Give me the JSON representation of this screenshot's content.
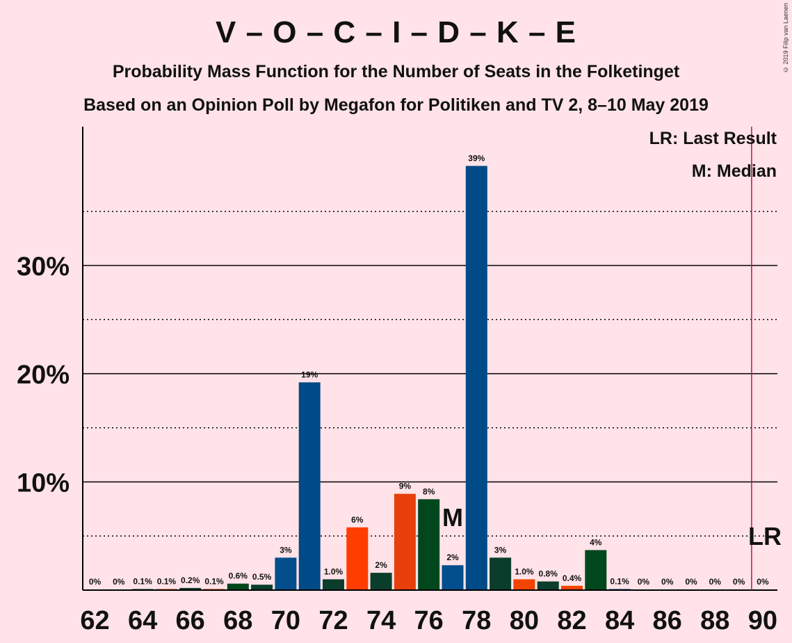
{
  "title": "V – O – C – I – D – K – E",
  "subtitle1": "Probability Mass Function for the Number of Seats in the Folketinget",
  "subtitle2": "Based on an Opinion Poll by Megafon for Politiken and TV 2, 8–10 May 2019",
  "copyright": "© 2019 Filip van Laenen",
  "legend": {
    "last_result": "LR: Last Result",
    "median": "M: Median"
  },
  "markers": {
    "median_label": "M",
    "median_seat": 77,
    "last_result_label": "LR",
    "last_result_seat": 90
  },
  "colors": {
    "background": "#ffe3e8",
    "palette": [
      "#034e8c",
      "#f24400",
      "#00471e",
      "#e8400c",
      "#0a3d2c",
      "#ff3d00",
      "#004a87"
    ],
    "last_result_line": "#c0143c"
  },
  "chart_data": {
    "type": "bar",
    "xlabel": "",
    "ylabel": "",
    "ylim": [
      0,
      42
    ],
    "x_ticks": [
      62,
      64,
      66,
      68,
      70,
      72,
      74,
      76,
      78,
      80,
      82,
      84,
      86,
      88,
      90
    ],
    "y_ticks": [
      10,
      20,
      30
    ],
    "y_tick_labels": [
      "10%",
      "20%",
      "30%"
    ],
    "y_dotted_lines": [
      5,
      15,
      25,
      35
    ],
    "categories": [
      62,
      63,
      64,
      65,
      66,
      67,
      68,
      69,
      70,
      71,
      72,
      73,
      74,
      75,
      76,
      77,
      78,
      79,
      80,
      81,
      82,
      83,
      84,
      85,
      86,
      87,
      88,
      89,
      90
    ],
    "values": [
      0,
      0,
      0.1,
      0.1,
      0.2,
      0.1,
      0.6,
      0.5,
      3,
      19.2,
      1.0,
      5.8,
      1.6,
      8.9,
      8.4,
      2.3,
      39.2,
      3,
      1.0,
      0.8,
      0.4,
      3.7,
      0.1,
      0,
      0,
      0,
      0,
      0,
      0
    ],
    "labels": [
      "0%",
      "0%",
      "0.1%",
      "0.1%",
      "0.2%",
      "0.1%",
      "0.6%",
      "0.5%",
      "3%",
      "19%",
      "1.0%",
      "6%",
      "2%",
      "9%",
      "8%",
      "2%",
      "39%",
      "3%",
      "1.0%",
      "0.8%",
      "0.4%",
      "4%",
      "0.1%",
      "0%",
      "0%",
      "0%",
      "0%",
      "0%",
      "0%"
    ],
    "bar_colors": [
      "#034e8c",
      "#f24400",
      "#00471e",
      "#e8400c",
      "#0a3d2c",
      "#ff3d00",
      "#00471e",
      "#0a3d2c",
      "#034e8c",
      "#004a87",
      "#0a3d2c",
      "#ff3d00",
      "#0a3d2c",
      "#e8400c",
      "#00471e",
      "#034e8c",
      "#004a87",
      "#0a3d2c",
      "#f24400",
      "#0a3d2c",
      "#f24400",
      "#00471e",
      "#034e8c",
      "#034e8c",
      "#034e8c",
      "#034e8c",
      "#034e8c",
      "#034e8c",
      "#034e8c"
    ]
  }
}
